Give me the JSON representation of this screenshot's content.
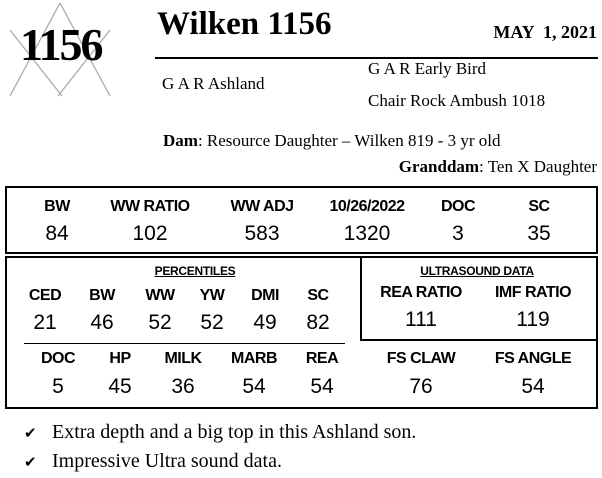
{
  "logo": {
    "number": "1156"
  },
  "header": {
    "title": "Wilken 1156",
    "date": "MAY  1, 2021"
  },
  "pedigree": {
    "sire": "G A R Ashland",
    "sire_sire": "G A R Early Bird",
    "sire_dam": "Chair Rock Ambush 1018",
    "dam_label": "Dam",
    "dam": ": Resource Daughter – Wilken 819 - 3 yr old",
    "granddam_label": "Granddam",
    "granddam": ": Ten X Daughter"
  },
  "stats": [
    {
      "label": "BW",
      "value": "84"
    },
    {
      "label": "WW RATIO",
      "value": "102"
    },
    {
      "label": "WW ADJ",
      "value": "583"
    },
    {
      "label": "10/26/2022",
      "value": "1320"
    },
    {
      "label": "DOC",
      "value": "3"
    },
    {
      "label": "SC",
      "value": "35"
    }
  ],
  "percentiles": {
    "title": "PERCENTILES",
    "row1": [
      {
        "label": "CED",
        "value": "21"
      },
      {
        "label": "BW",
        "value": "46"
      },
      {
        "label": "WW",
        "value": "52"
      },
      {
        "label": "YW",
        "value": "52"
      },
      {
        "label": "DMI",
        "value": "49"
      },
      {
        "label": "SC",
        "value": "82"
      }
    ],
    "row2": [
      {
        "label": "DOC",
        "value": "5"
      },
      {
        "label": "HP",
        "value": "45"
      },
      {
        "label": "MILK",
        "value": "36"
      },
      {
        "label": "MARB",
        "value": "54"
      },
      {
        "label": "REA",
        "value": "54"
      }
    ]
  },
  "ultrasound": {
    "title": "ULTRASOUND DATA",
    "items": [
      {
        "label": "REA RATIO",
        "value": "111"
      },
      {
        "label": "IMF RATIO",
        "value": "119"
      }
    ]
  },
  "feet": [
    {
      "label": "FS CLAW",
      "value": "76"
    },
    {
      "label": "FS ANGLE",
      "value": "54"
    }
  ],
  "notes": [
    "Extra depth and a big top in this Ashland son.",
    "Impressive Ultra sound data."
  ]
}
